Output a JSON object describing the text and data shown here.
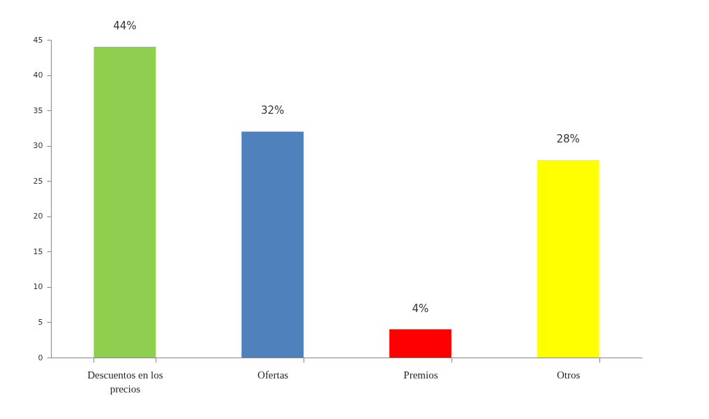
{
  "chart_data": {
    "type": "bar",
    "categories": [
      "Descuentos en los precios",
      "Ofertas",
      "Premios",
      "Otros"
    ],
    "values": [
      44,
      32,
      4,
      28
    ],
    "colors": [
      "#8fce4e",
      "#4f81bd",
      "#ff0000",
      "#ffff00"
    ],
    "value_labels": [
      "44%",
      "32%",
      "4%",
      "28%"
    ],
    "ylim": [
      0,
      45
    ],
    "yticks": [
      0,
      5,
      10,
      15,
      20,
      25,
      30,
      35,
      40,
      45
    ]
  }
}
